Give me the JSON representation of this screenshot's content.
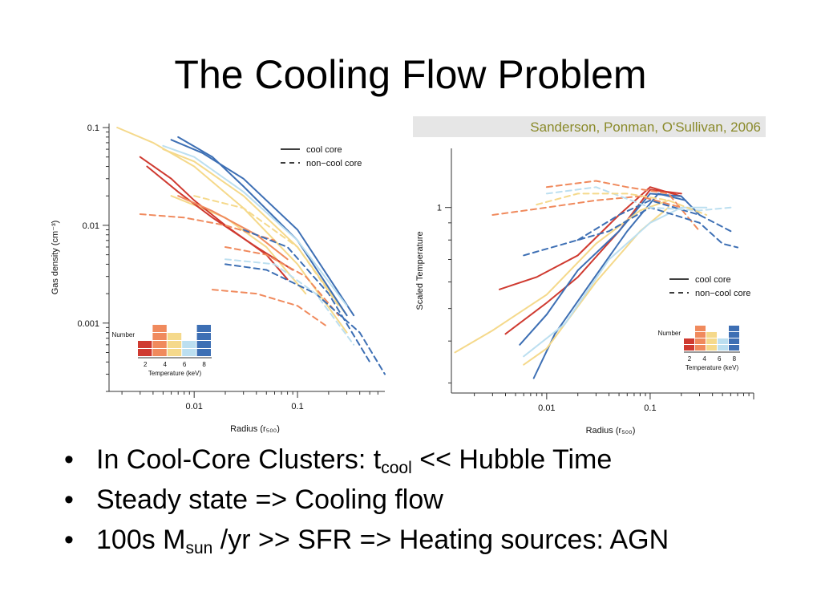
{
  "title": "The Cooling Flow Problem",
  "bullets": [
    {
      "parts": [
        {
          "t": "In Cool-Core Clusters: t"
        },
        {
          "sub": "cool"
        },
        {
          "t": " << Hubble Time"
        }
      ]
    },
    {
      "parts": [
        {
          "t": "Steady state => Cooling flow"
        }
      ]
    },
    {
      "parts": [
        {
          "t": "100s M"
        },
        {
          "sub": "sun"
        },
        {
          "t": " /yr >> SFR  => Heating sources: AGN"
        }
      ]
    }
  ],
  "colors": {
    "t2": "#cf3a30",
    "t4": "#f08a5d",
    "t6": "#f5d98b",
    "t7": "#bcdff0",
    "t8": "#3d6fb4"
  },
  "chart_data": [
    {
      "type": "line",
      "xlabel": "Radius (r₅₀₀)",
      "ylabel": "Gas density (cm⁻³)",
      "x_scale": "log",
      "y_scale": "log",
      "xlim": [
        0.0015,
        0.7
      ],
      "ylim": [
        0.0002,
        0.11
      ],
      "x_ticks": [
        {
          "v": 0.01,
          "label": "0.01"
        },
        {
          "v": 0.1,
          "label": "0.1"
        }
      ],
      "y_ticks": [
        {
          "v": 0.1,
          "label": "0.1"
        },
        {
          "v": 0.01,
          "label": "0.01"
        },
        {
          "v": 0.001,
          "label": "0.001"
        }
      ],
      "legend": {
        "position": "top-right",
        "items": [
          {
            "label": "cool core",
            "style": "solid"
          },
          {
            "label": "non−cool core",
            "style": "dashed"
          }
        ]
      },
      "colorbar": {
        "label": "Number",
        "xlabel": "Temperature (keV)",
        "ticks": [
          "2",
          "4",
          "6",
          "8"
        ]
      },
      "series": [
        {
          "color": "t6",
          "style": "solid",
          "x": [
            0.0018,
            0.004,
            0.01,
            0.03,
            0.1,
            0.3
          ],
          "y": [
            0.1,
            0.07,
            0.04,
            0.015,
            0.004,
            0.0008
          ]
        },
        {
          "color": "t6",
          "style": "solid",
          "x": [
            0.005,
            0.01,
            0.03,
            0.1,
            0.3
          ],
          "y": [
            0.06,
            0.045,
            0.02,
            0.006,
            0.0012
          ]
        },
        {
          "color": "t6",
          "style": "solid",
          "x": [
            0.006,
            0.02,
            0.05,
            0.12
          ],
          "y": [
            0.02,
            0.012,
            0.006,
            0.002
          ]
        },
        {
          "color": "t8",
          "style": "solid",
          "x": [
            0.007,
            0.015,
            0.03,
            0.1,
            0.3
          ],
          "y": [
            0.08,
            0.05,
            0.025,
            0.007,
            0.0012
          ]
        },
        {
          "color": "t8",
          "style": "solid",
          "x": [
            0.006,
            0.012,
            0.03,
            0.1,
            0.35
          ],
          "y": [
            0.075,
            0.055,
            0.03,
            0.009,
            0.0012
          ]
        },
        {
          "color": "t7",
          "style": "solid",
          "x": [
            0.005,
            0.01,
            0.03,
            0.1,
            0.3
          ],
          "y": [
            0.065,
            0.05,
            0.022,
            0.007,
            0.0015
          ]
        },
        {
          "color": "t2",
          "style": "solid",
          "x": [
            0.003,
            0.006,
            0.01,
            0.02,
            0.05,
            0.08
          ],
          "y": [
            0.05,
            0.03,
            0.018,
            0.01,
            0.005,
            0.0028
          ]
        },
        {
          "color": "t2",
          "style": "solid",
          "x": [
            0.0035,
            0.007,
            0.015,
            0.04,
            0.09
          ],
          "y": [
            0.04,
            0.022,
            0.012,
            0.006,
            0.0035
          ]
        },
        {
          "color": "t4",
          "style": "solid",
          "x": [
            0.007,
            0.015,
            0.04,
            0.08
          ],
          "y": [
            0.02,
            0.014,
            0.008,
            0.0045
          ]
        },
        {
          "color": "t4",
          "style": "dashed",
          "x": [
            0.003,
            0.008,
            0.02,
            0.06
          ],
          "y": [
            0.013,
            0.012,
            0.01,
            0.007
          ]
        },
        {
          "color": "t4",
          "style": "dashed",
          "x": [
            0.02,
            0.05,
            0.12,
            0.25
          ],
          "y": [
            0.006,
            0.005,
            0.003,
            0.0012
          ]
        },
        {
          "color": "t4",
          "style": "dashed",
          "x": [
            0.015,
            0.04,
            0.1,
            0.2
          ],
          "y": [
            0.0022,
            0.002,
            0.0015,
            0.0009
          ]
        },
        {
          "color": "t8",
          "style": "dashed",
          "x": [
            0.02,
            0.05,
            0.15,
            0.4,
            0.7
          ],
          "y": [
            0.004,
            0.0035,
            0.002,
            0.0008,
            0.0003
          ]
        },
        {
          "color": "t8",
          "style": "dashed",
          "x": [
            0.03,
            0.08,
            0.2,
            0.5
          ],
          "y": [
            0.009,
            0.006,
            0.002,
            0.0004
          ]
        },
        {
          "color": "t7",
          "style": "dashed",
          "x": [
            0.02,
            0.06,
            0.15,
            0.35
          ],
          "y": [
            0.0045,
            0.004,
            0.002,
            0.0006
          ]
        },
        {
          "color": "t6",
          "style": "dashed",
          "x": [
            0.01,
            0.03,
            0.1,
            0.25
          ],
          "y": [
            0.02,
            0.015,
            0.006,
            0.0015
          ]
        }
      ]
    },
    {
      "type": "line",
      "title": "Sanderson, Ponman, O'Sullivan, 2006",
      "xlabel": "Radius (r₅₀₀)",
      "ylabel": "Scaled Temperature",
      "x_scale": "log",
      "y_scale": "log",
      "xlim": [
        0.0012,
        1.0
      ],
      "ylim": [
        0.28,
        1.5
      ],
      "x_ticks": [
        {
          "v": 0.01,
          "label": "0.01"
        },
        {
          "v": 0.1,
          "label": "0.1"
        }
      ],
      "y_ticks": [
        {
          "v": 1,
          "label": "1"
        }
      ],
      "legend": {
        "position": "center-right",
        "items": [
          {
            "label": "cool core",
            "style": "solid"
          },
          {
            "label": "non−cool core",
            "style": "dashed"
          }
        ]
      },
      "colorbar": {
        "label": "Number",
        "xlabel": "Temperature (keV)",
        "ticks": [
          "2",
          "4",
          "6",
          "8"
        ]
      },
      "series": [
        {
          "color": "t2",
          "style": "solid",
          "x": [
            0.0035,
            0.008,
            0.02,
            0.05,
            0.1,
            0.2
          ],
          "y": [
            0.57,
            0.62,
            0.72,
            0.95,
            1.15,
            1.08
          ]
        },
        {
          "color": "t2",
          "style": "solid",
          "x": [
            0.004,
            0.01,
            0.02,
            0.05,
            0.1,
            0.2
          ],
          "y": [
            0.42,
            0.52,
            0.62,
            0.85,
            1.13,
            1.1
          ]
        },
        {
          "color": "t8",
          "style": "solid",
          "x": [
            0.0055,
            0.01,
            0.02,
            0.05,
            0.1,
            0.2,
            0.3
          ],
          "y": [
            0.39,
            0.48,
            0.65,
            0.85,
            1.1,
            1.08,
            0.95
          ]
        },
        {
          "color": "t8",
          "style": "solid",
          "x": [
            0.0075,
            0.012,
            0.025,
            0.06,
            0.12,
            0.22
          ],
          "y": [
            0.31,
            0.42,
            0.58,
            0.85,
            1.1,
            1.05
          ]
        },
        {
          "color": "t6",
          "style": "solid",
          "x": [
            0.0013,
            0.003,
            0.01,
            0.03,
            0.08,
            0.15
          ],
          "y": [
            0.37,
            0.43,
            0.55,
            0.78,
            0.98,
            1.05
          ]
        },
        {
          "color": "t6",
          "style": "solid",
          "x": [
            0.006,
            0.01,
            0.03,
            0.08,
            0.15
          ],
          "y": [
            0.34,
            0.38,
            0.6,
            0.85,
            1.0
          ]
        },
        {
          "color": "t7",
          "style": "solid",
          "x": [
            0.006,
            0.015,
            0.04,
            0.1,
            0.2,
            0.35
          ],
          "y": [
            0.36,
            0.45,
            0.7,
            0.9,
            1.0,
            1.0
          ]
        },
        {
          "color": "t4",
          "style": "dashed",
          "x": [
            0.003,
            0.01,
            0.03,
            0.08,
            0.2
          ],
          "y": [
            0.95,
            1.0,
            1.05,
            1.08,
            1.0
          ]
        },
        {
          "color": "t4",
          "style": "dashed",
          "x": [
            0.01,
            0.03,
            0.06,
            0.15,
            0.3
          ],
          "y": [
            1.15,
            1.2,
            1.15,
            1.1,
            0.85
          ]
        },
        {
          "color": "t8",
          "style": "dashed",
          "x": [
            0.006,
            0.015,
            0.04,
            0.1,
            0.3,
            0.5,
            0.7
          ],
          "y": [
            0.72,
            0.78,
            0.85,
            1.0,
            0.9,
            0.78,
            0.76
          ]
        },
        {
          "color": "t8",
          "style": "dashed",
          "x": [
            0.02,
            0.05,
            0.1,
            0.3,
            0.6
          ],
          "y": [
            0.8,
            0.95,
            1.05,
            0.95,
            0.85
          ]
        },
        {
          "color": "t7",
          "style": "dashed",
          "x": [
            0.01,
            0.03,
            0.1,
            0.3,
            0.6
          ],
          "y": [
            1.1,
            1.15,
            1.0,
            0.98,
            1.0
          ]
        },
        {
          "color": "t6",
          "style": "dashed",
          "x": [
            0.008,
            0.02,
            0.06,
            0.15,
            0.35
          ],
          "y": [
            1.02,
            1.1,
            1.1,
            1.05,
            0.95
          ]
        }
      ]
    }
  ]
}
